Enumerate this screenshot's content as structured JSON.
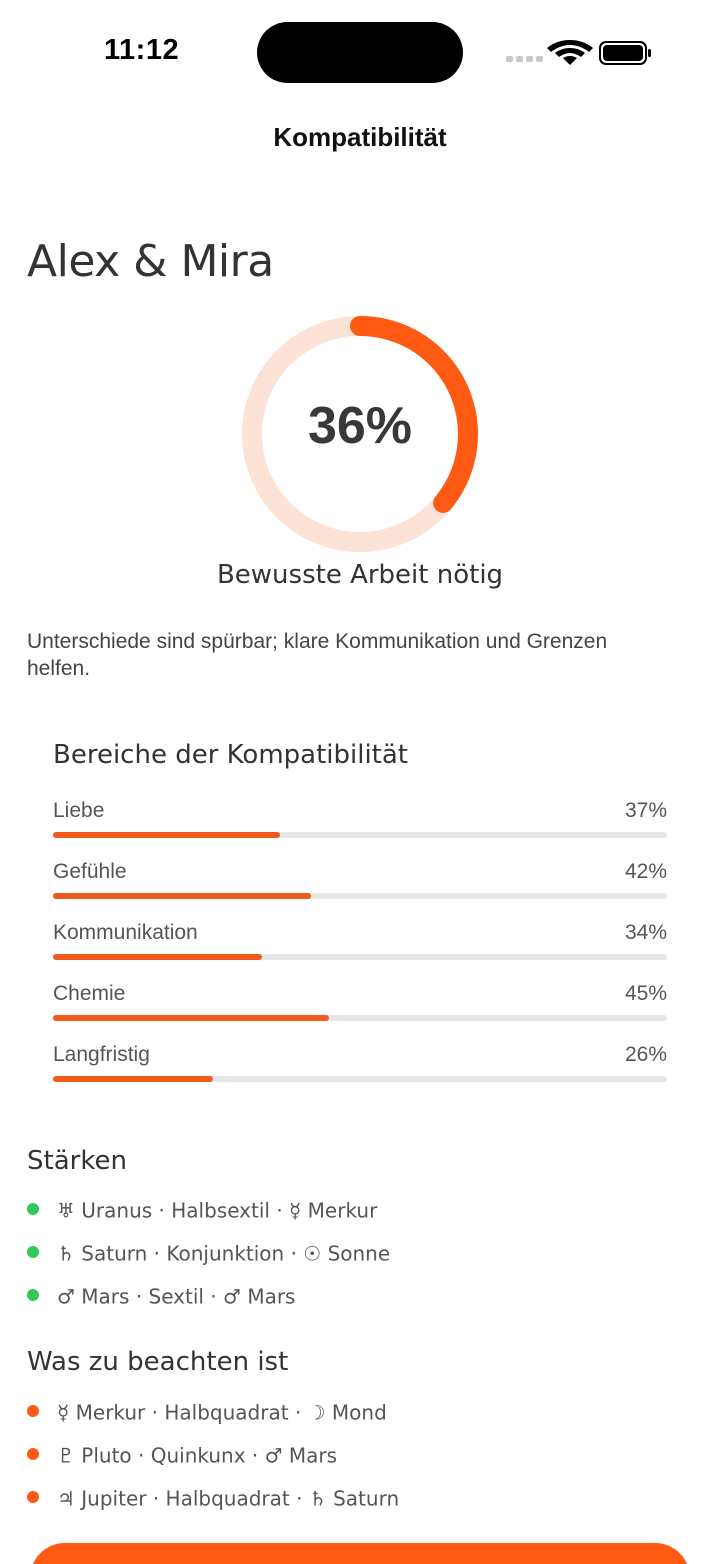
{
  "status_bar": {
    "time": "11:12"
  },
  "nav": {
    "title": "Kompatibilität"
  },
  "pair": {
    "title": "Alex & Mira"
  },
  "score": {
    "value": 36,
    "label": "36%",
    "caption": "Bewusste Arbeit nötig",
    "track_color": "#fde3d6",
    "fill_color": "#ff5a14"
  },
  "summary": "Unterschiede sind spürbar; klare Kommunikation und Grenzen helfen.",
  "areas": {
    "title": "Bereiche der Kompatibilität",
    "items": [
      {
        "label": "Liebe",
        "pct_label": "37%",
        "value": 37
      },
      {
        "label": "Gefühle",
        "pct_label": "42%",
        "value": 42
      },
      {
        "label": "Kommunikation",
        "pct_label": "34%",
        "value": 34
      },
      {
        "label": "Chemie",
        "pct_label": "45%",
        "value": 45
      },
      {
        "label": "Langfristig",
        "pct_label": "26%",
        "value": 26
      }
    ]
  },
  "strengths": {
    "title": "Stärken",
    "dot_color": "#34c759",
    "items": [
      "♅ Uranus · Halbsextil · ☿ Merkur",
      "♄ Saturn · Konjunktion · ☉ Sonne",
      "♂ Mars · Sextil · ♂ Mars"
    ]
  },
  "cautions": {
    "title": "Was zu beachten ist",
    "dot_color": "#ff5a14",
    "items": [
      "☿ Merkur · Halbquadrat · ☽ Mond",
      "♇ Pluto · Quinkunx · ♂ Mars",
      "♃ Jupiter · Halbquadrat · ♄ Saturn"
    ]
  },
  "icons": {
    "signal": "cellular-signal-icon",
    "wifi": "wifi-icon",
    "battery": "battery-icon"
  }
}
